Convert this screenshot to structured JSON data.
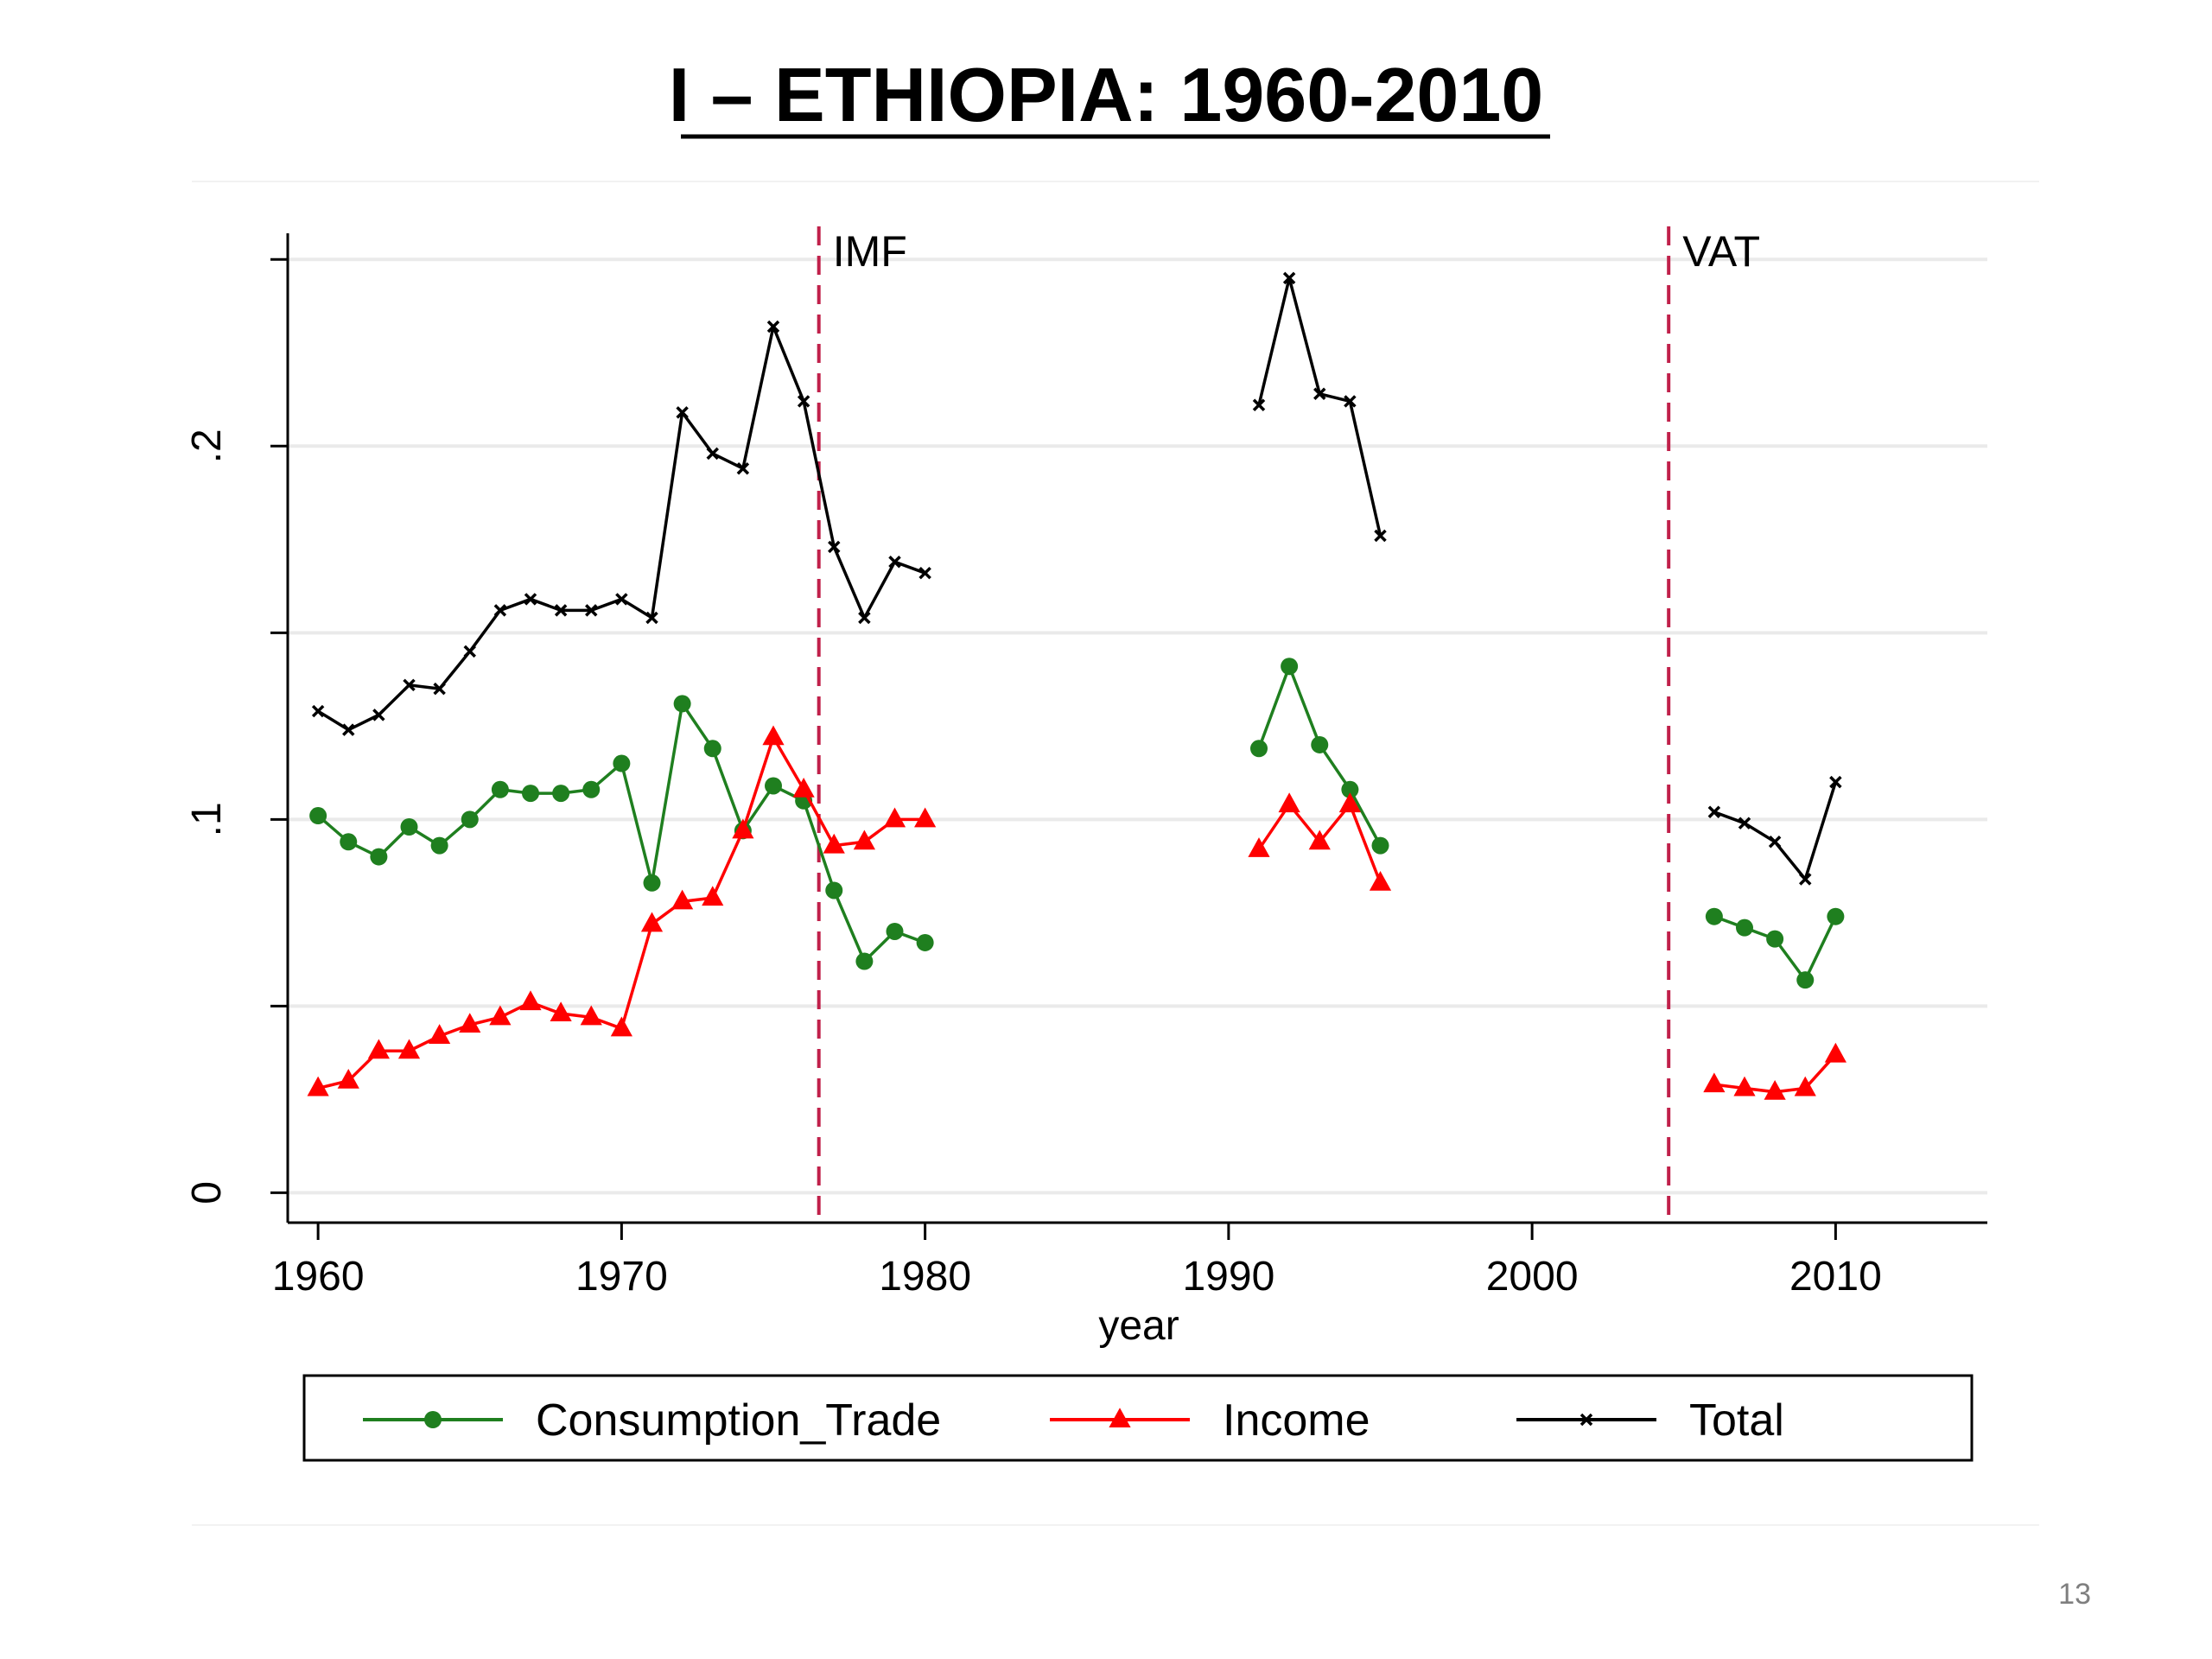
{
  "slide": {
    "title": "I – ETHIOPIA: 1960-2010",
    "page_number": "13"
  },
  "chart_data": {
    "type": "line",
    "title": "",
    "xlabel": "year",
    "ylabel": "",
    "xlim": [
      1959,
      2015
    ],
    "ylim": [
      -0.008,
      0.257
    ],
    "x_ticks": [
      {
        "value": 1960,
        "label": "1960"
      },
      {
        "value": 1970,
        "label": "1970"
      },
      {
        "value": 1980,
        "label": "1980"
      },
      {
        "value": 1990,
        "label": "1990"
      },
      {
        "value": 2000,
        "label": "2000"
      },
      {
        "value": 2010,
        "label": "2010"
      }
    ],
    "y_ticks": [
      0,
      0.05,
      0.1,
      0.15,
      0.2,
      0.25
    ],
    "y_tick_labels": [
      {
        "value": 0,
        "label": "0"
      },
      {
        "value": 0.1,
        "label": ".1"
      },
      {
        "value": 0.2,
        "label": ".2"
      }
    ],
    "grid": true,
    "legend_position": "bottom",
    "reference_lines": [
      {
        "x": 1976.5,
        "label": "IMF",
        "color": "#c0204a"
      },
      {
        "x": 2004.5,
        "label": "VAT",
        "color": "#c0204a"
      }
    ],
    "series": [
      {
        "name": "Consumption_Trade",
        "color": "#1f7f1f",
        "marker": "circle",
        "segments": [
          {
            "x": [
              1960,
              1961,
              1962,
              1963,
              1964,
              1965,
              1966,
              1967,
              1968,
              1969,
              1970,
              1971,
              1972,
              1973,
              1974,
              1975,
              1976,
              1977,
              1978,
              1979,
              1980
            ],
            "y": [
              0.101,
              0.094,
              0.09,
              0.098,
              0.093,
              0.1,
              0.108,
              0.107,
              0.107,
              0.108,
              0.115,
              0.083,
              0.131,
              0.119,
              0.097,
              0.109,
              0.105,
              0.081,
              0.062,
              0.07,
              0.067
            ]
          },
          {
            "x": [
              1991,
              1992,
              1993,
              1994,
              1995
            ],
            "y": [
              0.119,
              0.141,
              0.12,
              0.108,
              0.093
            ]
          },
          {
            "x": [
              2006,
              2007,
              2008,
              2009,
              2010
            ],
            "y": [
              0.074,
              0.071,
              0.068,
              0.057,
              0.074
            ]
          }
        ]
      },
      {
        "name": "Income",
        "color": "#ff0000",
        "marker": "triangle",
        "segments": [
          {
            "x": [
              1960,
              1961,
              1962,
              1963,
              1964,
              1965,
              1966,
              1967,
              1968,
              1969,
              1970,
              1971,
              1972,
              1973,
              1974,
              1975,
              1976,
              1977,
              1978,
              1979,
              1980
            ],
            "y": [
              0.028,
              0.03,
              0.038,
              0.038,
              0.042,
              0.045,
              0.047,
              0.051,
              0.048,
              0.047,
              0.044,
              0.072,
              0.078,
              0.079,
              0.097,
              0.122,
              0.108,
              0.093,
              0.094,
              0.1,
              0.1
            ]
          },
          {
            "x": [
              1991,
              1992,
              1993,
              1994,
              1995
            ],
            "y": [
              0.092,
              0.104,
              0.094,
              0.104,
              0.083
            ]
          },
          {
            "x": [
              2006,
              2007,
              2008,
              2009,
              2010
            ],
            "y": [
              0.029,
              0.028,
              0.027,
              0.028,
              0.037
            ]
          }
        ]
      },
      {
        "name": "Total",
        "color": "#000000",
        "marker": "x",
        "segments": [
          {
            "x": [
              1960,
              1961,
              1962,
              1963,
              1964,
              1965,
              1966,
              1967,
              1968,
              1969,
              1970,
              1971,
              1972,
              1973,
              1974,
              1975,
              1976,
              1977,
              1978,
              1979,
              1980
            ],
            "y": [
              0.129,
              0.124,
              0.128,
              0.136,
              0.135,
              0.145,
              0.156,
              0.159,
              0.156,
              0.156,
              0.159,
              0.154,
              0.209,
              0.198,
              0.194,
              0.232,
              0.212,
              0.173,
              0.154,
              0.169,
              0.166
            ]
          },
          {
            "x": [
              1991,
              1992,
              1993,
              1994,
              1995
            ],
            "y": [
              0.211,
              0.245,
              0.214,
              0.212,
              0.176
            ]
          },
          {
            "x": [
              2006,
              2007,
              2008,
              2009,
              2010
            ],
            "y": [
              0.102,
              0.099,
              0.094,
              0.084,
              0.11
            ]
          }
        ]
      }
    ]
  }
}
